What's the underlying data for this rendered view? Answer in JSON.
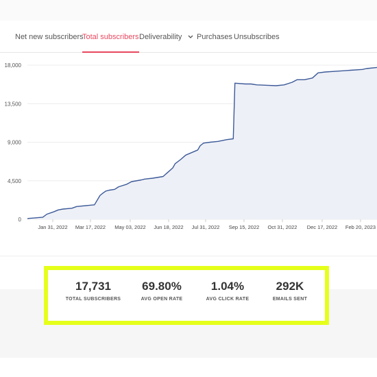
{
  "tabs": [
    {
      "label": "Net new subscribers",
      "active": false
    },
    {
      "label": "Total subscribers",
      "active": true
    },
    {
      "label": "Deliverability",
      "active": false,
      "has_dropdown": true
    },
    {
      "label": "Purchases",
      "active": false
    },
    {
      "label": "Unsubscribes",
      "active": false
    }
  ],
  "colors": {
    "accent": "#e8475f",
    "line": "#3b5998",
    "area": "#eef0f7",
    "highlight_border": "#e5ff1a"
  },
  "chart_data": {
    "type": "area",
    "y_ticks": [
      "18,000",
      "13,500",
      "9,000",
      "4,500",
      "0"
    ],
    "y_tick_values": [
      18000,
      13500,
      9000,
      4500,
      0
    ],
    "x_ticks": [
      "Jan 31, 2022",
      "Mar 17, 2022",
      "May 03, 2022",
      "Jun 18, 2022",
      "Jul 31, 2022",
      "Sep 15, 2022",
      "Oct 31, 2022",
      "Dec 17, 2022",
      "Feb 20, 2023"
    ],
    "ylim": [
      0,
      18000
    ],
    "x_start": "2022-01-01",
    "x_end": "2023-03-10",
    "x": [
      "2022-01-01",
      "2022-01-20",
      "2022-01-25",
      "2022-02-03",
      "2022-02-08",
      "2022-02-14",
      "2022-02-25",
      "2022-03-03",
      "2022-03-25",
      "2022-04-01",
      "2022-04-05",
      "2022-04-08",
      "2022-04-12",
      "2022-04-19",
      "2022-04-24",
      "2022-05-04",
      "2022-05-10",
      "2022-05-22",
      "2022-05-26",
      "2022-06-05",
      "2022-06-18",
      "2022-06-24",
      "2022-06-30",
      "2022-07-03",
      "2022-07-10",
      "2022-07-16",
      "2022-07-31",
      "2022-08-03",
      "2022-08-07",
      "2022-08-15",
      "2022-08-25",
      "2022-09-05",
      "2022-09-13",
      "2022-09-15",
      "2022-09-28",
      "2022-10-05",
      "2022-10-12",
      "2022-10-25",
      "2022-11-05",
      "2022-11-15",
      "2022-11-25",
      "2022-12-01",
      "2022-12-10",
      "2022-12-20",
      "2022-12-27",
      "2023-01-05",
      "2023-01-20",
      "2023-02-05",
      "2023-02-20",
      "2023-02-25",
      "2023-03-10"
    ],
    "values": [
      100,
      250,
      600,
      900,
      1100,
      1200,
      1300,
      1500,
      1700,
      2800,
      3100,
      3300,
      3400,
      3500,
      3800,
      4100,
      4400,
      4600,
      4700,
      4800,
      5000,
      5500,
      6000,
      6500,
      7000,
      7500,
      8100,
      8600,
      8900,
      9000,
      9100,
      9300,
      9400,
      15900,
      15800,
      15800,
      15700,
      15650,
      15600,
      15700,
      16000,
      16300,
      16300,
      16500,
      17100,
      17200,
      17300,
      17400,
      17500,
      17600,
      17731
    ],
    "title": "",
    "xlabel": "",
    "ylabel": ""
  },
  "stats": [
    {
      "value": "17,731",
      "label": "TOTAL SUBSCRIBERS"
    },
    {
      "value": "69.80%",
      "label": "AVG OPEN RATE"
    },
    {
      "value": "1.04%",
      "label": "AVG CLICK RATE"
    },
    {
      "value": "292K",
      "label": "EMAILS SENT"
    }
  ]
}
